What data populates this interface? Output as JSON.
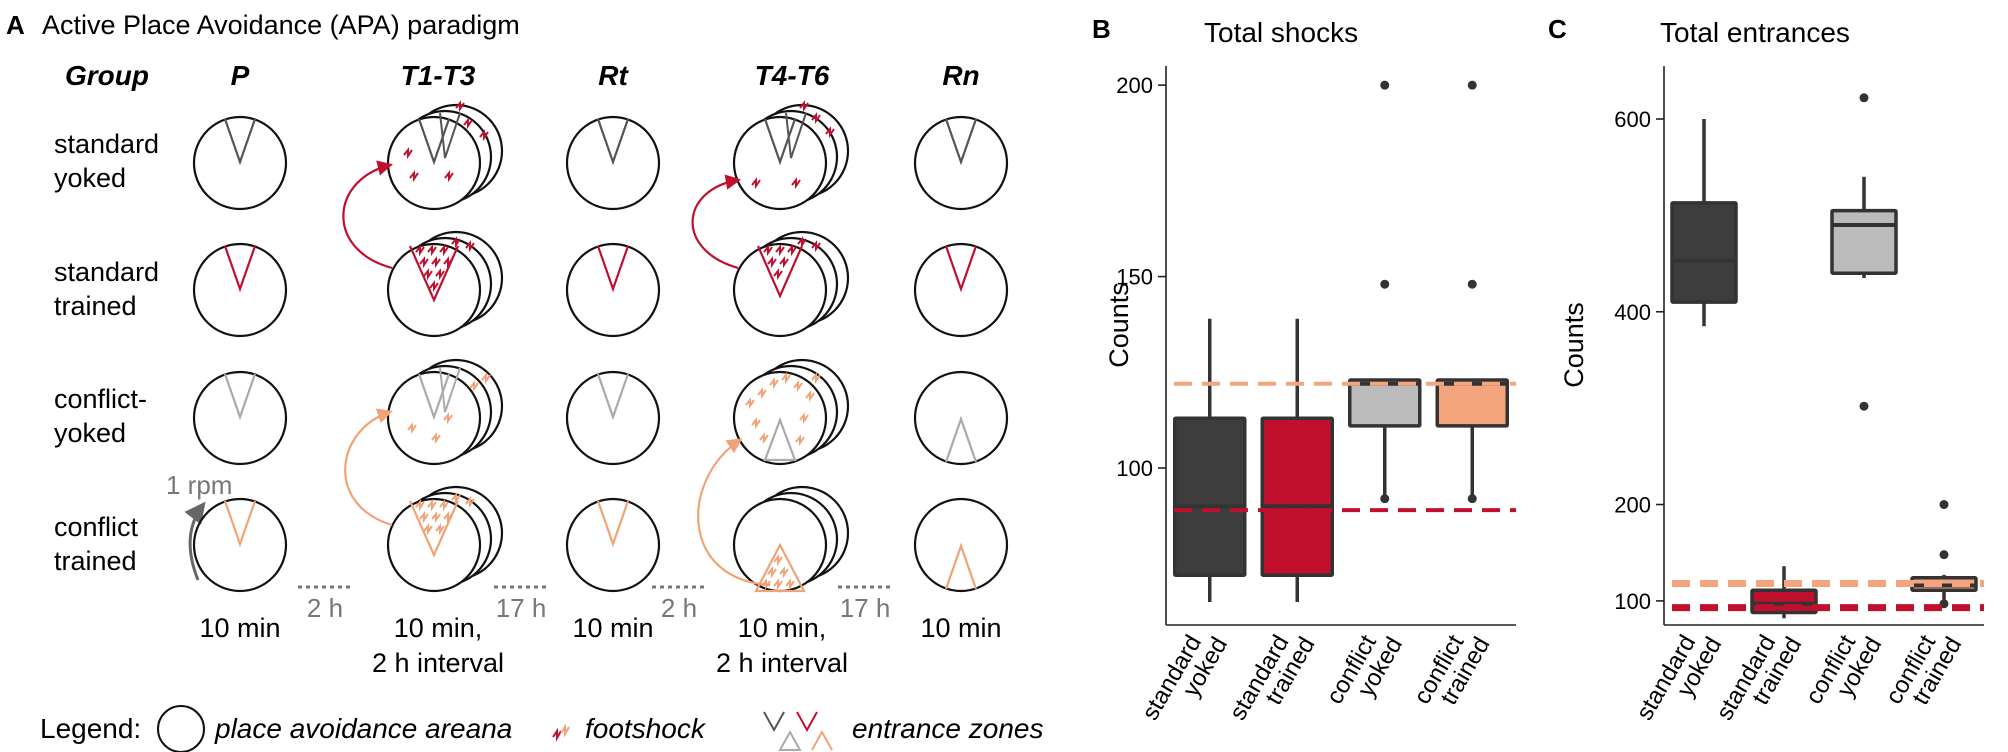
{
  "panelA": {
    "letter": "A",
    "title": "Active Place Avoidance (APA) paradigm",
    "group_header": "Group",
    "phases": [
      "P",
      "T1-T3",
      "Rt",
      "T4-T6",
      "Rn"
    ],
    "groups": [
      {
        "line1": "standard",
        "line2": "yoked"
      },
      {
        "line1": "standard",
        "line2": "trained"
      },
      {
        "line1": "conflict-",
        "line2": "yoked"
      },
      {
        "line1": "conflict",
        "line2": "trained"
      }
    ],
    "rotation": "1 rpm",
    "durations": {
      "P": "10 min",
      "T1_line1": "10 min,",
      "T1_line2": "2 h interval",
      "Rt": "10 min",
      "T4_line1": "10 min,",
      "T4_line2": "2 h interval",
      "Rn": "10 min"
    },
    "gaps": [
      "2 h",
      "17 h",
      "2 h",
      "17 h"
    ],
    "legend": {
      "label": "Legend:",
      "arena": "place avoidance areana",
      "shock": "footshock",
      "zones": "entrance zones"
    },
    "colors": {
      "standard_yoked": "#555555",
      "standard_trained": "#c0102e",
      "conflict_yoked": "#aaaaaa",
      "conflict_trained": "#f2a277"
    }
  },
  "chart_data": [
    {
      "letter": "B",
      "type": "box",
      "title": "Total shocks",
      "ylabel": "Counts",
      "yticks": [
        100,
        150,
        200
      ],
      "ylim": [
        59,
        205
      ],
      "categories": [
        {
          "line1": "standard",
          "line2": "yoked"
        },
        {
          "line1": "standard",
          "line2": "trained"
        },
        {
          "line1": "conflict",
          "line2": "yoked"
        },
        {
          "line1": "conflict",
          "line2": "trained"
        }
      ],
      "boxes": [
        {
          "min": 65,
          "q1": 72,
          "median": 90,
          "q3": 113,
          "max": 139,
          "outliers": [],
          "color": "#3d3d3d"
        },
        {
          "min": 65,
          "q1": 72,
          "median": 90,
          "q3": 113,
          "max": 139,
          "outliers": [],
          "color": "#c0102e"
        },
        {
          "min": 92,
          "q1": 111,
          "median": 122,
          "q3": 123,
          "max": 123,
          "outliers": [
            92,
            148,
            200
          ],
          "color": "#bbbbbb"
        },
        {
          "min": 92,
          "q1": 111,
          "median": 122,
          "q3": 123,
          "max": 123,
          "outliers": [
            92,
            148,
            200
          ],
          "color": "#f4a57d"
        }
      ],
      "reference_lines": [
        {
          "value": 122,
          "color": "#f4a57d"
        },
        {
          "value": 89,
          "color": "#c0102e"
        }
      ]
    },
    {
      "letter": "C",
      "type": "box",
      "title": "Total entrances",
      "ylabel": "Counts",
      "yticks": [
        100,
        200,
        400,
        600
      ],
      "ylim": [
        75,
        655
      ],
      "categories": [
        {
          "line1": "standard",
          "line2": "yoked"
        },
        {
          "line1": "standard",
          "line2": "trained"
        },
        {
          "line1": "conflict",
          "line2": "yoked"
        },
        {
          "line1": "conflict",
          "line2": "trained"
        }
      ],
      "boxes": [
        {
          "min": 385,
          "q1": 410,
          "median": 453,
          "q3": 513,
          "max": 600,
          "outliers": [],
          "color": "#3d3d3d"
        },
        {
          "min": 82,
          "q1": 88,
          "median": 97,
          "q3": 111,
          "max": 136,
          "outliers": [],
          "color": "#c0102e"
        },
        {
          "min": 435,
          "q1": 440,
          "median": 490,
          "q3": 505,
          "max": 540,
          "outliers": [
            302,
            622
          ],
          "color": "#bbbbbb"
        },
        {
          "min": 97,
          "q1": 111,
          "median": 116,
          "q3": 124,
          "max": 127,
          "outliers": [
            97,
            148,
            200
          ],
          "color": "#f4a57d"
        }
      ],
      "reference_lines": [
        {
          "value": 118,
          "color": "#f4a57d"
        },
        {
          "value": 93,
          "color": "#c0102e"
        }
      ]
    }
  ]
}
